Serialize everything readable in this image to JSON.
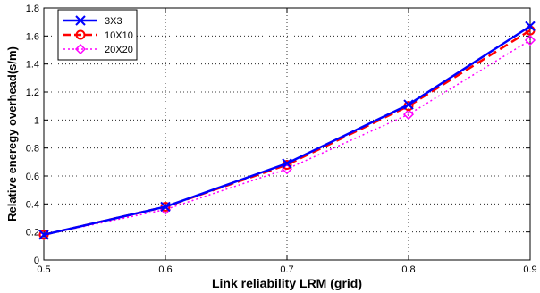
{
  "chart_data": {
    "type": "line",
    "xlabel": "Link reliability LRM (grid)",
    "ylabel": "Relative eneregy overhead(s/m)",
    "xlim": [
      0.5,
      0.9
    ],
    "ylim": [
      0,
      1.8
    ],
    "xticks": [
      0.5,
      0.6,
      0.7,
      0.8,
      0.9
    ],
    "yticks": [
      0,
      0.2,
      0.4,
      0.6,
      0.8,
      1,
      1.2,
      1.4,
      1.6,
      1.8
    ],
    "xtick_labels": [
      "0.5",
      "0.6",
      "0.7",
      "0.8",
      "0.9"
    ],
    "ytick_labels": [
      "0",
      "0.2",
      "0.4",
      "0.6",
      "0.8",
      "1",
      "1.2",
      "1.4",
      "1.6",
      "1.8"
    ],
    "grid": true,
    "legend_position": "top-left",
    "x": [
      0.5,
      0.6,
      0.7,
      0.8,
      0.9
    ],
    "series": [
      {
        "name": "3X3",
        "values": [
          0.18,
          0.38,
          0.69,
          1.11,
          1.67
        ],
        "color": "#0000ff",
        "line_style": "solid",
        "marker": "x"
      },
      {
        "name": "10X10",
        "values": [
          0.18,
          0.38,
          0.68,
          1.1,
          1.64
        ],
        "color": "#ff0000",
        "line_style": "dashed",
        "marker": "circle"
      },
      {
        "name": "20X20",
        "values": [
          0.18,
          0.36,
          0.65,
          1.04,
          1.57
        ],
        "color": "#ff00ff",
        "line_style": "dotted",
        "marker": "diamond"
      }
    ]
  }
}
